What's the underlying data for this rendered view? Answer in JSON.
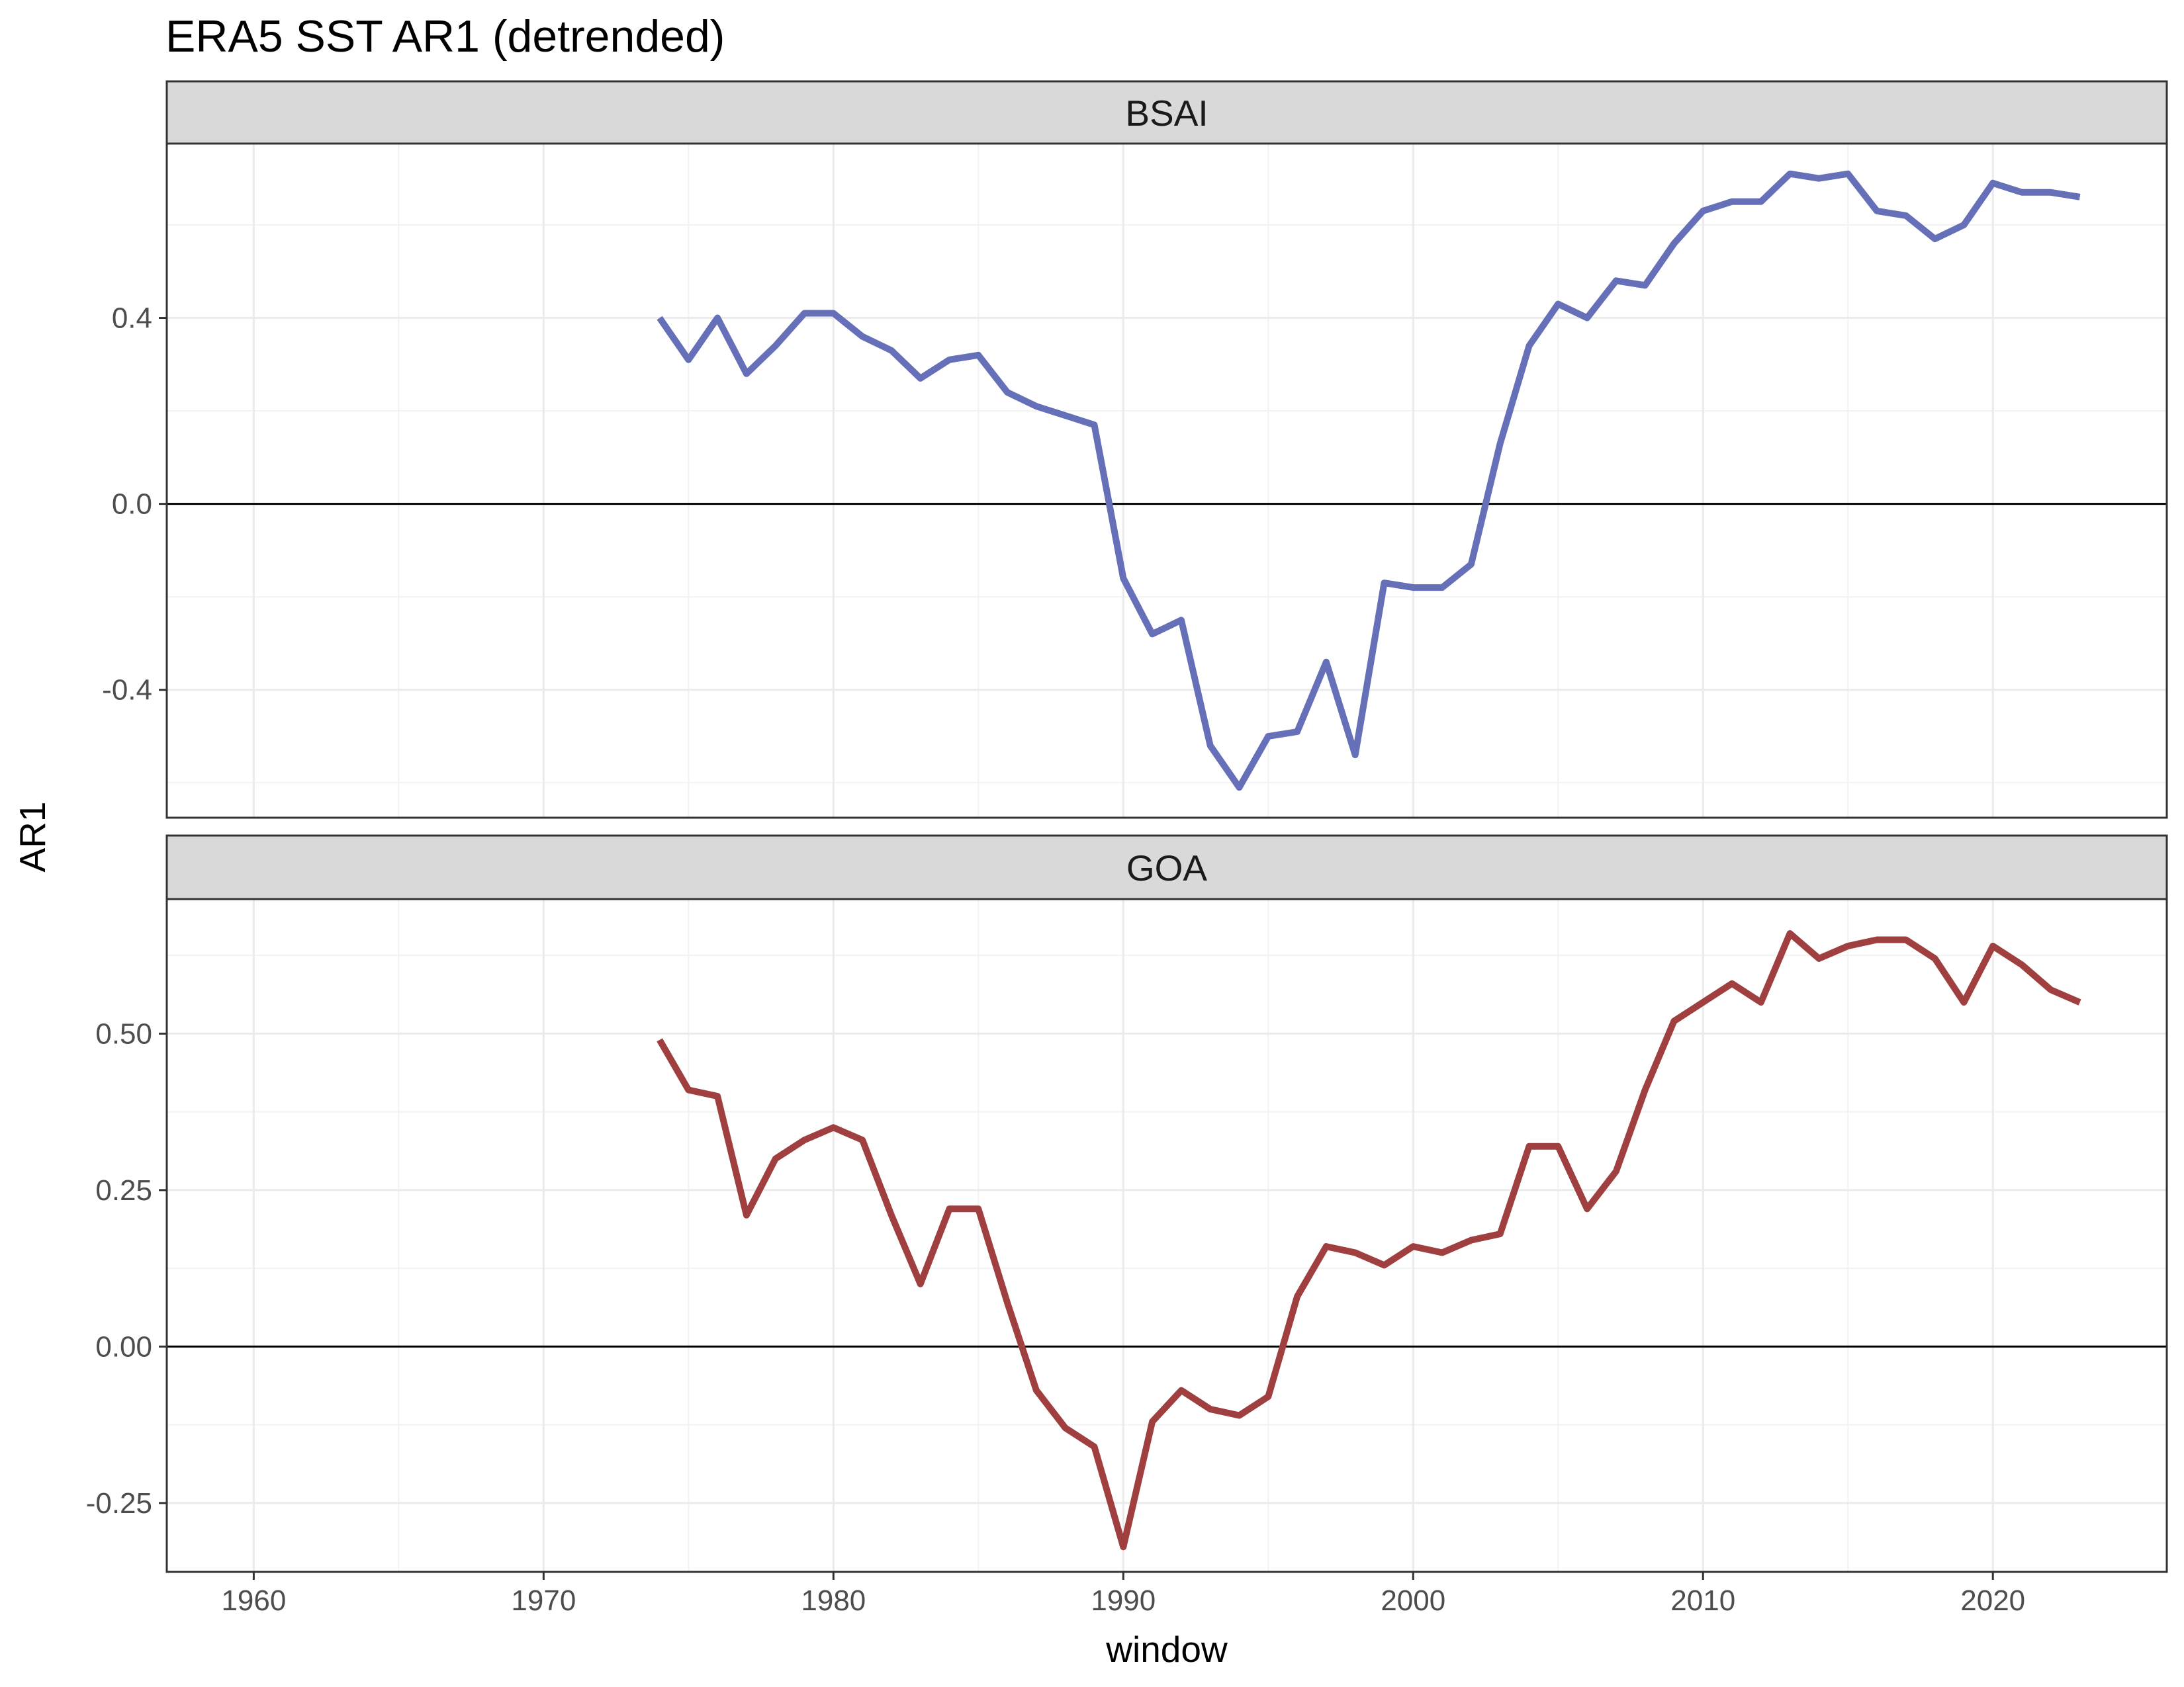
{
  "chart_data": {
    "type": "line",
    "title": "ERA5 SST AR1 (detrended)",
    "xlabel": "window",
    "ylabel": "AR1",
    "xlim": [
      1957,
      2026
    ],
    "x_ticks": [
      "1960",
      "1970",
      "1980",
      "1990",
      "2000",
      "2010",
      "2020"
    ],
    "x": [
      1974,
      1975,
      1976,
      1977,
      1978,
      1979,
      1980,
      1981,
      1982,
      1983,
      1984,
      1985,
      1986,
      1987,
      1988,
      1989,
      1990,
      1991,
      1992,
      1993,
      1994,
      1995,
      1996,
      1997,
      1998,
      1999,
      2000,
      2001,
      2002,
      2003,
      2004,
      2005,
      2006,
      2007,
      2008,
      2009,
      2010,
      2011,
      2012,
      2013,
      2014,
      2015,
      2016,
      2017,
      2018,
      2019,
      2020,
      2021,
      2022,
      2023
    ],
    "grid": true,
    "legend": "none",
    "reference_line": 0,
    "panels": [
      {
        "name": "BSAI",
        "color": "#6670B8",
        "ylim": [
          -0.675,
          0.775
        ],
        "y_ticks": [
          -0.4,
          0.0,
          0.4
        ],
        "y_tick_labels": [
          "-0.4",
          "0.0",
          "0.4"
        ],
        "values": [
          0.4,
          0.31,
          0.4,
          0.28,
          0.34,
          0.41,
          0.41,
          0.36,
          0.33,
          0.27,
          0.31,
          0.32,
          0.24,
          0.21,
          0.19,
          0.17,
          -0.16,
          -0.28,
          -0.25,
          -0.52,
          -0.61,
          -0.5,
          -0.49,
          -0.34,
          -0.54,
          -0.17,
          -0.18,
          -0.18,
          -0.13,
          0.13,
          0.34,
          0.43,
          0.4,
          0.48,
          0.47,
          0.56,
          0.63,
          0.65,
          0.65,
          0.71,
          0.7,
          0.71,
          0.63,
          0.62,
          0.57,
          0.6,
          0.69,
          0.67,
          0.67,
          0.66
        ]
      },
      {
        "name": "GOA",
        "color": "#A03F3F",
        "ylim": [
          -0.36,
          0.715
        ],
        "y_ticks": [
          -0.25,
          0.0,
          0.25,
          0.5
        ],
        "y_tick_labels": [
          "-0.25",
          "0.00",
          "0.25",
          "0.50"
        ],
        "values": [
          0.49,
          0.41,
          0.4,
          0.21,
          0.3,
          0.33,
          0.35,
          0.33,
          0.21,
          0.1,
          0.22,
          0.22,
          0.07,
          -0.07,
          -0.13,
          -0.16,
          -0.32,
          -0.12,
          -0.07,
          -0.1,
          -0.11,
          -0.08,
          0.08,
          0.16,
          0.15,
          0.13,
          0.16,
          0.15,
          0.17,
          0.18,
          0.32,
          0.32,
          0.22,
          0.28,
          0.41,
          0.52,
          0.55,
          0.58,
          0.55,
          0.66,
          0.62,
          0.64,
          0.65,
          0.65,
          0.62,
          0.55,
          0.64,
          0.61,
          0.57,
          0.55
        ]
      }
    ]
  }
}
